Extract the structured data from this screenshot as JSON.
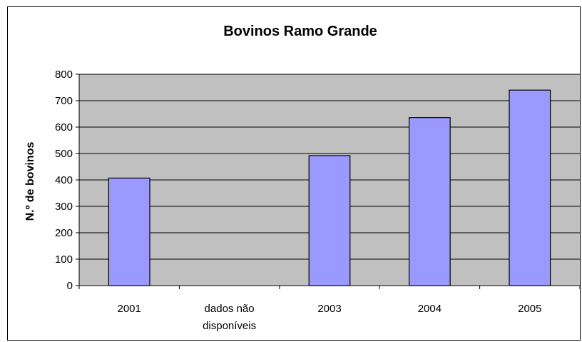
{
  "chart_data": {
    "type": "bar",
    "title": "Bovinos Ramo Grande",
    "xlabel": "",
    "ylabel": "N.º de bovinos",
    "categories": [
      "2001",
      "dados não disponíveis",
      "2003",
      "2004",
      "2005"
    ],
    "category_lines": [
      [
        "2001"
      ],
      [
        "dados não",
        "disponíveis"
      ],
      [
        "2003"
      ],
      [
        "2004"
      ],
      [
        "2005"
      ]
    ],
    "values": [
      407,
      null,
      492,
      636,
      740
    ],
    "ylim": [
      0,
      800
    ],
    "yticks": [
      "0",
      "100",
      "200",
      "300",
      "400",
      "500",
      "600",
      "700",
      "800"
    ],
    "grid": true,
    "legend": "none",
    "colors": {
      "plot_background": "#c0c0c0",
      "bar_fill": "#9999ff",
      "bar_stroke": "#000000",
      "gridline": "#000000"
    }
  }
}
